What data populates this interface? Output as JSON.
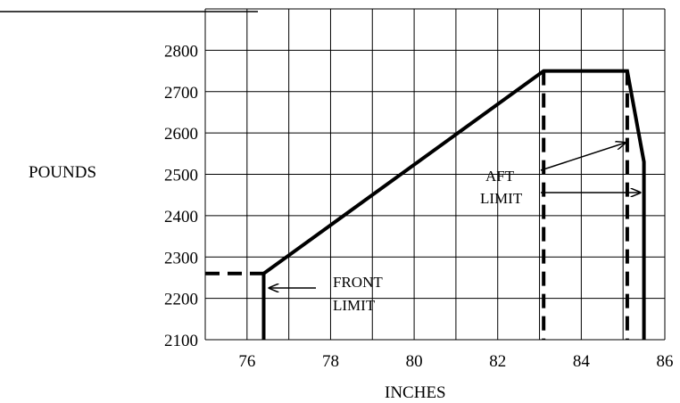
{
  "chart_data": {
    "type": "line",
    "title": "",
    "xlabel": "INCHES",
    "ylabel": "POUNDS",
    "xlim": [
      75,
      86
    ],
    "ylim": [
      2100,
      2900
    ],
    "x_ticks": [
      76,
      78,
      80,
      82,
      84,
      86
    ],
    "y_ticks": [
      2100,
      2200,
      2300,
      2400,
      2500,
      2600,
      2700,
      2800
    ],
    "grid": true,
    "series": [
      {
        "style": "solid",
        "points": [
          [
            76.4,
            2100
          ],
          [
            76.4,
            2260
          ],
          [
            83.1,
            2750
          ],
          [
            85.1,
            2750
          ],
          [
            85.5,
            2530
          ],
          [
            85.5,
            2100
          ]
        ]
      },
      {
        "style": "dashed",
        "points": [
          [
            75,
            2260
          ],
          [
            76.4,
            2260
          ]
        ]
      },
      {
        "style": "dashed",
        "points": [
          [
            83.1,
            2750
          ],
          [
            83.1,
            2100
          ]
        ]
      },
      {
        "style": "dashed",
        "points": [
          [
            85.1,
            2750
          ],
          [
            85.1,
            2100
          ]
        ]
      }
    ],
    "annotations": [
      {
        "lines": [
          "FRONT",
          "LIMIT"
        ]
      },
      {
        "lines": [
          "AFT",
          "LIMIT"
        ]
      }
    ]
  }
}
